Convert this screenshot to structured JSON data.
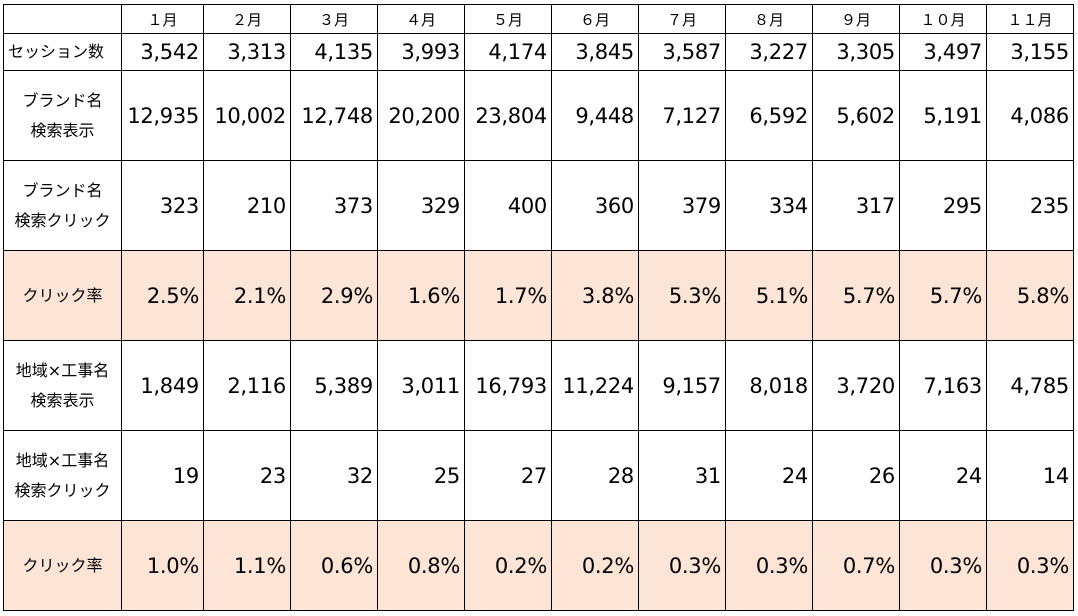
{
  "months": [
    "１月",
    "２月",
    "３月",
    "４月",
    "５月",
    "６月",
    "７月",
    "８月",
    "９月",
    "１０月",
    "１１月"
  ],
  "rows": [
    {
      "label_lines": [
        "セッション数"
      ],
      "values": [
        "3,542",
        "3,313",
        "4,135",
        "3,993",
        "4,174",
        "3,845",
        "3,587",
        "3,227",
        "3,305",
        "3,497",
        "3,155"
      ]
    },
    {
      "label_lines": [
        "ブランド名",
        "検索表示"
      ],
      "values": [
        "12,935",
        "10,002",
        "12,748",
        "20,200",
        "23,804",
        "9,448",
        "7,127",
        "6,592",
        "5,602",
        "5,191",
        "4,086"
      ]
    },
    {
      "label_lines": [
        "ブランド名",
        "検索クリック"
      ],
      "values": [
        "323",
        "210",
        "373",
        "329",
        "400",
        "360",
        "379",
        "334",
        "317",
        "295",
        "235"
      ]
    },
    {
      "label_lines": [
        "クリック率"
      ],
      "values": [
        "2.5%",
        "2.1%",
        "2.9%",
        "1.6%",
        "1.7%",
        "3.8%",
        "5.3%",
        "5.1%",
        "5.7%",
        "5.7%",
        "5.8%"
      ]
    },
    {
      "label_lines": [
        "地域×工事名",
        "検索表示"
      ],
      "values": [
        "1,849",
        "2,116",
        "5,389",
        "3,011",
        "16,793",
        "11,224",
        "9,157",
        "8,018",
        "3,720",
        "7,163",
        "4,785"
      ]
    },
    {
      "label_lines": [
        "地域×工事名",
        "検索クリック"
      ],
      "values": [
        "19",
        "23",
        "32",
        "25",
        "27",
        "28",
        "31",
        "24",
        "26",
        "24",
        "14"
      ]
    },
    {
      "label_lines": [
        "クリック率"
      ],
      "values": [
        "1.0%",
        "1.1%",
        "0.6%",
        "0.8%",
        "0.2%",
        "0.2%",
        "0.3%",
        "0.3%",
        "0.7%",
        "0.3%",
        "0.3%"
      ]
    }
  ],
  "colors": {
    "highlight_row": "#fce4d6",
    "border": "#000000"
  }
}
